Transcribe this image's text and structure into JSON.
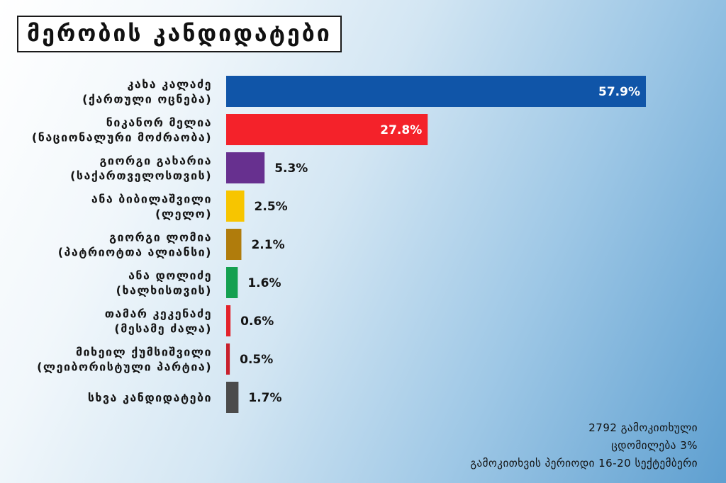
{
  "chart_data": {
    "type": "bar",
    "orientation": "horizontal",
    "title": "მერობის კანდიდატები",
    "categories": [
      [
        "კახა კალაძე",
        "(ქართული ოცნება)"
      ],
      [
        "ნიკანორ მელია",
        "(ნაციონალური მოძრაობა)"
      ],
      [
        "გიორგი გახარია",
        "(საქართველოსთვის)"
      ],
      [
        "ანა ბიბილაშვილი",
        "(ლელო)"
      ],
      [
        "გიორგი ლომია",
        "(პატრიოტთა ალიანსი)"
      ],
      [
        "ანა დოლიძე",
        "(ხალხისთვის)"
      ],
      [
        "თამარ კეკენაძე",
        "(მესამე ძალა)"
      ],
      [
        "მიხეილ ქუმსიშვილი",
        "(ლეიბორისტული პარტია)"
      ],
      [
        "სხვა კანდიდატები"
      ]
    ],
    "values": [
      57.9,
      27.8,
      5.3,
      2.5,
      2.1,
      1.6,
      0.6,
      0.5,
      1.7
    ],
    "value_labels": [
      "57.9%",
      "27.8%",
      "5.3%",
      "2.5%",
      "2.1%",
      "1.6%",
      "0.6%",
      "0.5%",
      "1.7%"
    ],
    "colors": [
      "#1055a8",
      "#f4222a",
      "#67308f",
      "#f7c500",
      "#b07c0c",
      "#14a050",
      "#e3222a",
      "#c8202c",
      "#4b4b4b"
    ],
    "xlim": [
      0,
      57.9
    ],
    "grid": false,
    "legend": "none"
  },
  "footer": {
    "respondents": "2792 გამოკითხული",
    "margin_of_error": "ცდომილება 3%",
    "survey_period": "გამოკითხვის პერიოდი 16-20 სექტემბერი"
  }
}
